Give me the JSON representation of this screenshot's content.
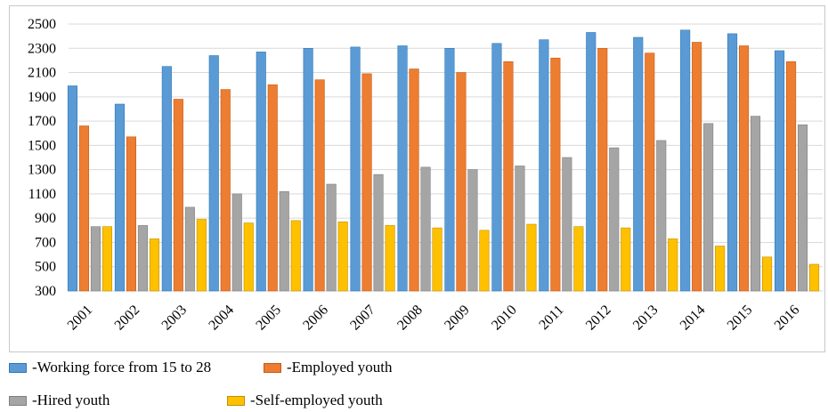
{
  "chart_data": {
    "type": "bar",
    "categories": [
      "2001",
      "2002",
      "2003",
      "2004",
      "2005",
      "2006",
      "2007",
      "2008",
      "2009",
      "2010",
      "2011",
      "2012",
      "2013",
      "2014",
      "2015",
      "2016"
    ],
    "series": [
      {
        "name": "-Working force from 15 to 28",
        "color": "#5b9bd5",
        "values": [
          1990,
          1840,
          2150,
          2240,
          2270,
          2300,
          2310,
          2320,
          2300,
          2340,
          2370,
          2430,
          2390,
          2450,
          2420,
          2280
        ]
      },
      {
        "name": "-Employed youth",
        "color": "#ed7d31",
        "values": [
          1660,
          1570,
          1880,
          1960,
          2000,
          2040,
          2090,
          2130,
          2100,
          2190,
          2220,
          2300,
          2260,
          2350,
          2320,
          2190
        ]
      },
      {
        "name": "-Hired youth",
        "color": "#a5a5a5",
        "values": [
          830,
          840,
          990,
          1100,
          1120,
          1180,
          1260,
          1320,
          1300,
          1330,
          1400,
          1480,
          1540,
          1680,
          1740,
          1670
        ]
      },
      {
        "name": "-Self-employed youth",
        "color": "#ffc000",
        "values": [
          830,
          730,
          890,
          860,
          880,
          870,
          840,
          820,
          800,
          850,
          830,
          820,
          730,
          670,
          580,
          520
        ]
      }
    ],
    "yticks": [
      "300",
      "500",
      "700",
      "900",
      "1100",
      "1300",
      "1500",
      "1700",
      "1900",
      "2100",
      "2300",
      "2500"
    ],
    "ylim": [
      300,
      2500
    ],
    "grid": true,
    "legend_position": "bottom",
    "title": "",
    "xlabel": "",
    "ylabel": ""
  }
}
